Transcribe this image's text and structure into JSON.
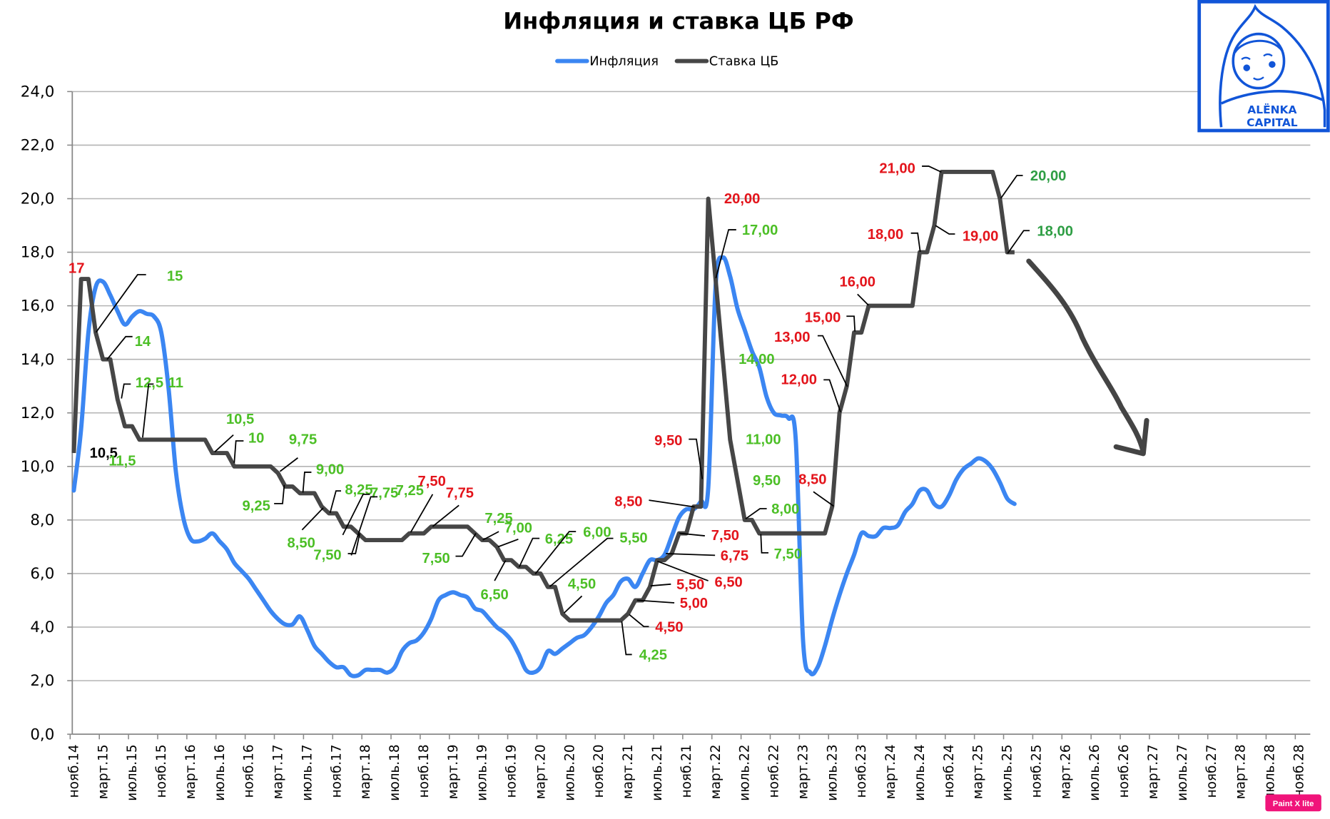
{
  "colors": {
    "inflation": "#3b86f2",
    "key_rate": "#464646",
    "cut_label": "#4cbf26",
    "cut_label_recent": "#2e9e44",
    "hike_label": "#e3141b",
    "neutral_label": "#000000",
    "grid": "#b4b4b4",
    "logo": "#1155d8",
    "badge": "#f0147a"
  },
  "logo": {
    "line1": "ALЁNKA",
    "line2": "CAPITAL"
  },
  "badge": {
    "text": "Paint X lite"
  },
  "chart_data": {
    "type": "line",
    "title": "Инфляция и ставка ЦБ РФ",
    "legend_position": "top",
    "grid": true,
    "ylim": [
      0,
      24
    ],
    "y_ticks": [
      "0,0",
      "2,0",
      "4,0",
      "6,0",
      "8,0",
      "10,0",
      "12,0",
      "14,0",
      "16,0",
      "18,0",
      "20,0",
      "22,0",
      "24,0"
    ],
    "x_start": "нояб.14",
    "x_tick_labels": [
      "нояб.14",
      "март.15",
      "июль.15",
      "нояб.15",
      "март.16",
      "июль.16",
      "нояб.16",
      "март.17",
      "июль.17",
      "нояб.17",
      "март.18",
      "июль.18",
      "нояб.18",
      "март.19",
      "июль.19",
      "нояб.19",
      "март.20",
      "июль.20",
      "нояб.20",
      "март.21",
      "июль.21",
      "нояб.21",
      "март.22",
      "июль.22",
      "нояб.22",
      "март.23",
      "июль.23",
      "нояб.23",
      "март.24",
      "июль.24",
      "нояб.24",
      "март.25",
      "июль.25",
      "нояб.25",
      "март.26",
      "июль.26",
      "нояб.26",
      "март.27",
      "июль.27",
      "нояб.27",
      "март.28",
      "июль.28",
      "нояб.28"
    ],
    "series": [
      {
        "name": "Инфляция",
        "values": [
          9.1,
          11.4,
          15.0,
          16.7,
          16.9,
          16.4,
          15.8,
          15.3,
          15.6,
          15.8,
          15.7,
          15.6,
          15.0,
          12.9,
          9.8,
          8.1,
          7.3,
          7.2,
          7.3,
          7.5,
          7.2,
          6.9,
          6.4,
          6.1,
          5.8,
          5.4,
          5.0,
          4.6,
          4.3,
          4.1,
          4.1,
          4.4,
          3.9,
          3.3,
          3.0,
          2.7,
          2.5,
          2.5,
          2.2,
          2.2,
          2.4,
          2.4,
          2.4,
          2.3,
          2.5,
          3.1,
          3.4,
          3.5,
          3.8,
          4.3,
          5.0,
          5.2,
          5.3,
          5.2,
          5.1,
          4.7,
          4.6,
          4.3,
          4.0,
          3.8,
          3.5,
          3.0,
          2.4,
          2.3,
          2.5,
          3.1,
          3.0,
          3.2,
          3.4,
          3.6,
          3.7,
          4.0,
          4.4,
          4.9,
          5.2,
          5.7,
          5.8,
          5.5,
          6.0,
          6.5,
          6.5,
          6.7,
          7.4,
          8.1,
          8.4,
          8.4,
          8.7,
          9.2,
          16.7,
          17.8,
          17.1,
          15.9,
          15.1,
          14.3,
          13.7,
          12.6,
          12.0,
          11.9,
          11.8,
          11.0,
          3.5,
          2.3,
          2.5,
          3.3,
          4.3,
          5.2,
          6.0,
          6.7,
          7.5,
          7.4,
          7.4,
          7.7,
          7.7,
          7.8,
          8.3,
          8.6,
          9.1,
          9.1,
          8.6,
          8.5,
          8.9,
          9.5,
          9.9,
          10.1,
          10.3,
          10.2,
          9.9,
          9.4,
          8.8,
          8.6
        ]
      },
      {
        "name": "Ставка ЦБ",
        "values": [
          10.5,
          17,
          17,
          15,
          14,
          14,
          12.5,
          11.5,
          11.5,
          11,
          11,
          11,
          11,
          11,
          11,
          11,
          11,
          11,
          11,
          10.5,
          10.5,
          10.5,
          10,
          10,
          10,
          10,
          10,
          10,
          9.75,
          9.25,
          9.25,
          9,
          9,
          9,
          8.5,
          8.25,
          8.25,
          7.75,
          7.75,
          7.5,
          7.25,
          7.25,
          7.25,
          7.25,
          7.25,
          7.25,
          7.5,
          7.5,
          7.5,
          7.75,
          7.75,
          7.75,
          7.75,
          7.75,
          7.75,
          7.5,
          7.25,
          7.25,
          7,
          6.5,
          6.5,
          6.25,
          6.25,
          6,
          6,
          5.5,
          5.5,
          4.5,
          4.25,
          4.25,
          4.25,
          4.25,
          4.25,
          4.25,
          4.25,
          4.25,
          4.5,
          5,
          5,
          5.5,
          6.5,
          6.5,
          6.75,
          7.5,
          7.5,
          8.5,
          8.5,
          20,
          17,
          14,
          11,
          9.5,
          8,
          8,
          7.5,
          7.5,
          7.5,
          7.5,
          7.5,
          7.5,
          7.5,
          7.5,
          7.5,
          7.5,
          8.5,
          12,
          13,
          15,
          15,
          16,
          16,
          16,
          16,
          16,
          16,
          16,
          18,
          18,
          19,
          21,
          21,
          21,
          21,
          21,
          21,
          21,
          21,
          20,
          18,
          18
        ]
      }
    ],
    "annotations": [
      {
        "text": "17",
        "color": "hike_label"
      },
      {
        "text": "15",
        "color": "cut_label"
      },
      {
        "text": "14",
        "color": "cut_label"
      },
      {
        "text": "12,5",
        "color": "cut_label"
      },
      {
        "text": "11",
        "color": "cut_label"
      },
      {
        "text": "10,5",
        "color": "neutral_label"
      },
      {
        "text": "11,5",
        "color": "cut_label"
      },
      {
        "text": "10,5",
        "color": "cut_label"
      },
      {
        "text": "10",
        "color": "cut_label"
      },
      {
        "text": "9,75",
        "color": "cut_label"
      },
      {
        "text": "9,00",
        "color": "cut_label"
      },
      {
        "text": "9,25",
        "color": "cut_label"
      },
      {
        "text": "8,25",
        "color": "cut_label"
      },
      {
        "text": "7,75",
        "color": "cut_label"
      },
      {
        "text": "7,25",
        "color": "cut_label"
      },
      {
        "text": "8,50",
        "color": "cut_label"
      },
      {
        "text": "7,50",
        "color": "cut_label"
      },
      {
        "text": "7,50",
        "color": "hike_label"
      },
      {
        "text": "7,75",
        "color": "hike_label"
      },
      {
        "text": "7,25",
        "color": "cut_label"
      },
      {
        "text": "7,00",
        "color": "cut_label"
      },
      {
        "text": "7,50",
        "color": "cut_label"
      },
      {
        "text": "6,50",
        "color": "cut_label"
      },
      {
        "text": "6,25",
        "color": "cut_label"
      },
      {
        "text": "6,00",
        "color": "cut_label"
      },
      {
        "text": "5,50",
        "color": "cut_label"
      },
      {
        "text": "4,50",
        "color": "cut_label"
      },
      {
        "text": "4,25",
        "color": "cut_label"
      },
      {
        "text": "4,50",
        "color": "hike_label"
      },
      {
        "text": "5,00",
        "color": "hike_label"
      },
      {
        "text": "5,50",
        "color": "hike_label"
      },
      {
        "text": "6,50",
        "color": "hike_label"
      },
      {
        "text": "6,75",
        "color": "hike_label"
      },
      {
        "text": "7,50",
        "color": "hike_label"
      },
      {
        "text": "8,50",
        "color": "hike_label"
      },
      {
        "text": "9,50",
        "color": "hike_label"
      },
      {
        "text": "20,00",
        "color": "hike_label"
      },
      {
        "text": "17,00",
        "color": "cut_label"
      },
      {
        "text": "14,00",
        "color": "cut_label"
      },
      {
        "text": "11,00",
        "color": "cut_label"
      },
      {
        "text": "9,50",
        "color": "cut_label"
      },
      {
        "text": "8,00",
        "color": "cut_label"
      },
      {
        "text": "7,50",
        "color": "cut_label"
      },
      {
        "text": "8,50",
        "color": "hike_label"
      },
      {
        "text": "12,00",
        "color": "hike_label"
      },
      {
        "text": "13,00",
        "color": "hike_label"
      },
      {
        "text": "15,00",
        "color": "hike_label"
      },
      {
        "text": "16,00",
        "color": "hike_label"
      },
      {
        "text": "18,00",
        "color": "hike_label"
      },
      {
        "text": "19,00",
        "color": "hike_label"
      },
      {
        "text": "21,00",
        "color": "hike_label"
      },
      {
        "text": "20,00",
        "color": "cut_label_recent"
      },
      {
        "text": "18,00",
        "color": "cut_label_recent"
      }
    ]
  }
}
